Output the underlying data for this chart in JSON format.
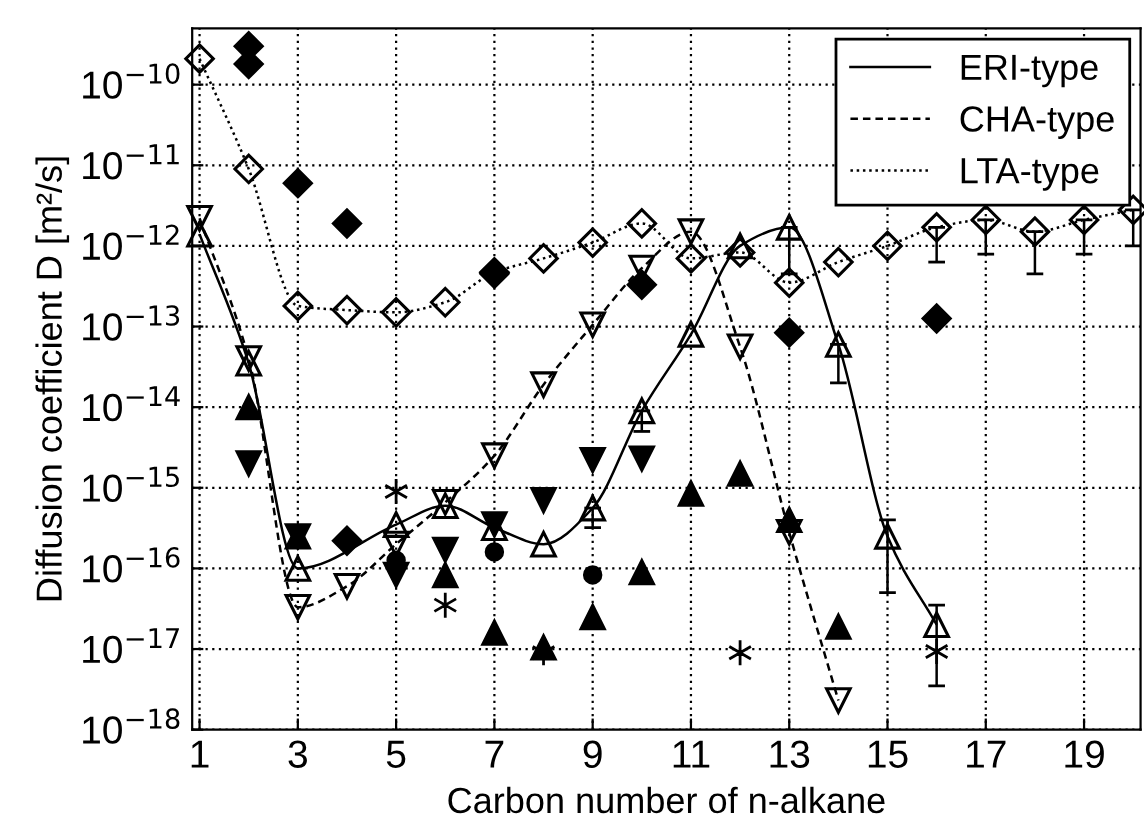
{
  "chart_data": {
    "type": "line",
    "xlabel": "Carbon number of n-alkane",
    "ylabel": "Diffusion coefficient D [m²/s]",
    "log": "y",
    "grid": true,
    "legend": "top right",
    "xlim": [
      0.85,
      20.15
    ],
    "xticks": [
      1,
      3,
      5,
      7,
      9,
      11,
      13,
      15,
      17,
      19
    ],
    "ylim": [
      1e-18,
      5e-10
    ],
    "yticks": [
      {
        "value": 1e-18,
        "label": "10$^{−18}$"
      },
      {
        "value": 1e-17,
        "label": "10$^{−17}$"
      },
      {
        "value": 1e-16,
        "label": "10$^{−16}$"
      },
      {
        "value": 1e-15,
        "label": "10$^{−15}$"
      },
      {
        "value": 1e-14,
        "label": "10$^{−14}$"
      },
      {
        "value": 1e-13,
        "label": "10$^{−13}$"
      },
      {
        "value": 1e-12,
        "label": "10$^{−12}$"
      },
      {
        "value": 1e-11,
        "label": "10$^{−11}$"
      },
      {
        "value": 1e-10,
        "label": "10$^{−10}$"
      }
    ],
    "series": [
      {
        "name": "ERI-type",
        "type": "line",
        "line_style": "solid",
        "marker": "triangle",
        "color": "#000000",
        "x": [
          1,
          2,
          3,
          5,
          6,
          7,
          8,
          9,
          10,
          11,
          12,
          13,
          14,
          15,
          16
        ],
        "values": [
          1.4e-12,
          3.5e-14,
          1e-16,
          3.5e-16,
          6e-16,
          3.2e-16,
          2e-16,
          5.6e-16,
          9e-15,
          8e-14,
          1e-12,
          1.7e-12,
          6e-14,
          2.5e-16,
          2e-17
        ],
        "errors": [
          null,
          null,
          null,
          null,
          null,
          null,
          null,
          [
            3.2e-16,
            5.6e-16
          ],
          [
            5e-15,
            9e-15
          ],
          null,
          null,
          [
            4.5e-13,
            1.7e-12
          ],
          [
            2e-14,
            6e-14
          ],
          [
            5e-17,
            4e-16
          ],
          [
            3.5e-18,
            3.5e-17
          ]
        ]
      },
      {
        "name": "CHA-type",
        "type": "line",
        "line_style": "dashed",
        "marker": "triangle_down",
        "color": "#000000",
        "x": [
          1,
          2,
          3,
          4,
          5,
          6,
          7,
          8,
          9,
          10,
          11,
          12,
          13,
          14
        ],
        "values": [
          2.2e-12,
          4e-14,
          3.3e-17,
          6e-17,
          2e-16,
          6.6e-16,
          2.5e-15,
          1.9e-14,
          1.05e-13,
          5.3e-13,
          1.5e-12,
          5.6e-14,
          2.8e-16,
          2.3e-18
        ]
      },
      {
        "name": "LTA-type",
        "line_style": "dotted",
        "marker": "diamond",
        "color": "#000000",
        "x": [
          1,
          2,
          3,
          4,
          5,
          6,
          7,
          8,
          9,
          10,
          11,
          12,
          13,
          14,
          15,
          16,
          17,
          18,
          19,
          20
        ],
        "values": [
          2.1e-10,
          9e-12,
          1.8e-13,
          1.6e-13,
          1.5e-13,
          2e-13,
          4.7e-13,
          7e-13,
          1.1e-12,
          1.9e-12,
          7e-13,
          8.3e-13,
          3.5e-13,
          6.3e-13,
          1e-12,
          1.7e-12,
          2.1e-12,
          1.5e-12,
          2.1e-12,
          2.8e-12
        ],
        "errors": [
          null,
          null,
          null,
          null,
          null,
          null,
          null,
          null,
          null,
          null,
          null,
          null,
          null,
          null,
          null,
          [
            6.3e-13,
            1.7e-12
          ],
          [
            7.9e-13,
            2.1e-12
          ],
          [
            4.5e-13,
            1.5e-12
          ],
          [
            7.9e-13,
            2.1e-12
          ],
          [
            1e-12,
            2.8e-12
          ]
        ]
      },
      {
        "type": "scatter",
        "marker": "diamond",
        "color": "#000000",
        "x": [
          2,
          2,
          3,
          4,
          7,
          10,
          13,
          16
        ],
        "values": [
          3e-10,
          1.8e-10,
          6e-12,
          1.9e-12,
          4.5e-13,
          3.3e-13,
          8.4e-14,
          1.26e-13
        ]
      },
      {
        "type": "scatter",
        "marker": "diamond",
        "color": "#000000",
        "x": [
          4
        ],
        "values": [
          2.2e-16
        ]
      },
      {
        "type": "scatter",
        "marker": "triangle",
        "color": "#000000",
        "x": [
          2,
          3,
          6,
          7,
          8,
          9,
          10,
          11,
          12,
          13,
          14
        ],
        "values": [
          1e-14,
          2.5e-16,
          8.3e-17,
          1.6e-17,
          1.05e-17,
          2.5e-17,
          9e-17,
          8.5e-16,
          1.5e-15,
          4e-16,
          1.9e-17
        ]
      },
      {
        "type": "scatter",
        "marker": "triangle_down",
        "color": "#000000",
        "x": [
          2,
          3,
          5,
          6,
          7,
          8,
          9,
          10
        ],
        "values": [
          2e-15,
          2.5e-16,
          8.3e-17,
          1.7e-16,
          3.5e-16,
          7e-16,
          2.2e-15,
          2.3e-15
        ]
      },
      {
        "type": "scatter",
        "marker": "circle",
        "color": "#000000",
        "x": [
          5,
          7,
          9
        ],
        "values": [
          1.26e-16,
          1.6e-16,
          8.3e-17
        ]
      },
      {
        "type": "scatter",
        "marker": "cross",
        "color": "#000000",
        "x": [
          5,
          6,
          8,
          12,
          16
        ],
        "values": [
          9e-16,
          3.5e-17,
          9e-18,
          9e-18,
          9.3e-18
        ]
      }
    ]
  }
}
